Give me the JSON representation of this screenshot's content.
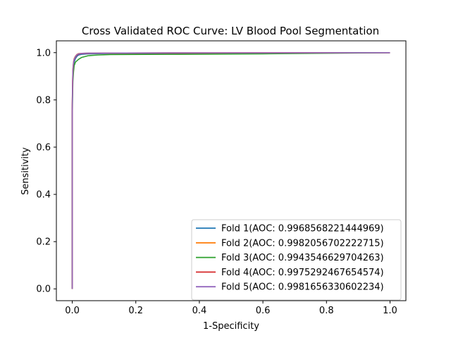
{
  "chart_data": {
    "type": "line",
    "title": "Cross Validated ROC Curve: LV Blood Pool Segmentation",
    "xlabel": "1-Specificity",
    "ylabel": "Sensitivity",
    "xlim": [
      -0.05,
      1.05
    ],
    "ylim": [
      -0.05,
      1.05
    ],
    "xticks": [
      "0.0",
      "0.2",
      "0.4",
      "0.6",
      "0.8",
      "1.0"
    ],
    "yticks": [
      "0.0",
      "0.2",
      "0.4",
      "0.6",
      "0.8",
      "1.0"
    ],
    "grid": false,
    "legend_position": "lower-right",
    "series": [
      {
        "name": "Fold 1(AOC: 0.9968568221444969)",
        "color": "#1f77b4",
        "x": [
          0,
          0,
          0.001,
          0.002,
          0.004,
          0.006,
          0.01,
          0.015,
          0.02,
          0.03,
          0.05,
          0.1,
          0.3,
          0.6,
          1.0
        ],
        "y": [
          0,
          0.75,
          0.85,
          0.9,
          0.94,
          0.96,
          0.975,
          0.985,
          0.99,
          0.993,
          0.995,
          0.996,
          0.997,
          0.998,
          1.0
        ]
      },
      {
        "name": "Fold 2(AOC: 0.9982056702222715)",
        "color": "#ff7f0e",
        "x": [
          0,
          0,
          0.001,
          0.002,
          0.004,
          0.006,
          0.01,
          0.015,
          0.02,
          0.03,
          0.05,
          0.1,
          0.3,
          0.6,
          1.0
        ],
        "y": [
          0,
          0.78,
          0.88,
          0.93,
          0.96,
          0.975,
          0.985,
          0.993,
          0.996,
          0.997,
          0.998,
          0.998,
          0.999,
          0.999,
          1.0
        ]
      },
      {
        "name": "Fold 3(AOC: 0.9943546629704263)",
        "color": "#2ca02c",
        "x": [
          0,
          0,
          0.001,
          0.002,
          0.004,
          0.006,
          0.01,
          0.02,
          0.03,
          0.05,
          0.08,
          0.12,
          0.3,
          0.6,
          1.0
        ],
        "y": [
          0,
          0.72,
          0.82,
          0.88,
          0.92,
          0.945,
          0.96,
          0.972,
          0.98,
          0.987,
          0.99,
          0.992,
          0.993,
          0.995,
          1.0
        ]
      },
      {
        "name": "Fold 4(AOC: 0.9975292467654574)",
        "color": "#d62728",
        "x": [
          0,
          0,
          0.001,
          0.002,
          0.004,
          0.006,
          0.01,
          0.015,
          0.02,
          0.03,
          0.05,
          0.1,
          0.3,
          0.6,
          1.0
        ],
        "y": [
          0,
          0.76,
          0.86,
          0.92,
          0.955,
          0.97,
          0.982,
          0.99,
          0.994,
          0.996,
          0.997,
          0.998,
          0.998,
          0.999,
          1.0
        ]
      },
      {
        "name": "Fold 5(AOC: 0.9981656330602234)",
        "color": "#9467bd",
        "x": [
          0,
          0,
          0.001,
          0.002,
          0.004,
          0.006,
          0.01,
          0.015,
          0.02,
          0.03,
          0.05,
          0.1,
          0.3,
          0.6,
          1.0
        ],
        "y": [
          0,
          0.77,
          0.87,
          0.925,
          0.958,
          0.972,
          0.984,
          0.992,
          0.995,
          0.997,
          0.998,
          0.998,
          0.999,
          0.999,
          1.0
        ]
      }
    ]
  }
}
